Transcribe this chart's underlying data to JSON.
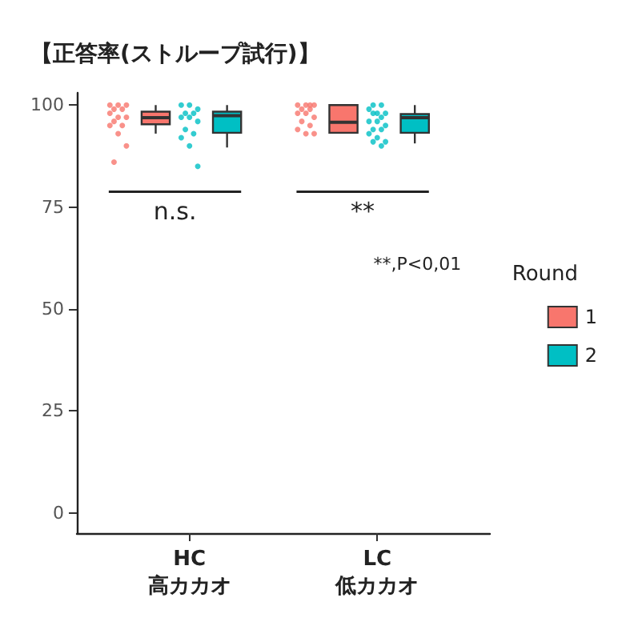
{
  "chart_data": {
    "type": "box",
    "title": "【正答率(ストループ試行)】",
    "categories": [
      "HC\n高カカオ",
      "LC\n低カカオ"
    ],
    "ylim": [
      -5,
      103
    ],
    "yticks": [
      0,
      25,
      50,
      75,
      100
    ],
    "grid": false,
    "legend": "right",
    "legend_title": "Round",
    "series": [
      {
        "name": "1",
        "color": "#f8766d",
        "boxes": [
          {
            "low": 93,
            "q1": 95.3,
            "median": 96.9,
            "q3": 98.4,
            "high": 100
          },
          {
            "low": 93,
            "q1": 93.2,
            "median": 95.8,
            "q3": 100,
            "high": 100
          }
        ]
      },
      {
        "name": "2",
        "color": "#00bfc4",
        "boxes": [
          {
            "low": 89.6,
            "q1": 93.2,
            "median": 97.4,
            "q3": 98.4,
            "high": 100
          },
          {
            "low": 90.6,
            "q1": 93.2,
            "median": 96.9,
            "q3": 97.8,
            "high": 100
          }
        ]
      },
      {
        "type": "scatter",
        "color": "#f8766d",
        "x": [
          "HC\n高カカオ",
          "HC\n高カカオ",
          "HC\n高カカオ",
          "HC\n高カカオ",
          "HC\n高カカオ",
          "HC\n高カカオ",
          "HC\n高カカオ",
          "HC\n高カカオ",
          "HC\n高カカオ",
          "HC\n高カカオ",
          "HC\n高カカオ",
          "HC\n高カカオ",
          "HC\n高カカオ",
          "HC\n高カカオ",
          "LC\n低カカオ",
          "LC\n低カカオ",
          "LC\n低カカオ",
          "LC\n低カカオ",
          "LC\n低カカオ",
          "LC\n低カカオ",
          "LC\n低カカオ",
          "LC\n低カカオ",
          "LC\n低カカオ",
          "LC\n低カカオ",
          "LC\n低カカオ",
          "LC\n低カカオ",
          "LC\n低カカオ",
          "LC\n低カカオ"
        ],
        "values": [
          100,
          100,
          100,
          99,
          99,
          98,
          97,
          97,
          96,
          95,
          95,
          93,
          90,
          86,
          100,
          100,
          100,
          100,
          99,
          99,
          98,
          98,
          97,
          96,
          95,
          94,
          93,
          93
        ]
      },
      {
        "type": "scatter",
        "color": "#00bfc4",
        "x": [
          "HC\n高カカオ",
          "HC\n高カカオ",
          "HC\n高カカオ",
          "HC\n高カカオ",
          "HC\n高カカオ",
          "HC\n高カカオ",
          "HC\n高カカオ",
          "HC\n高カカオ",
          "HC\n高カカオ",
          "HC\n高カカオ",
          "HC\n高カカオ",
          "HC\n高カカオ",
          "HC\n高カカオ",
          "LC\n低カカオ",
          "LC\n低カカオ",
          "LC\n低カカオ",
          "LC\n低カカオ",
          "LC\n低カカオ",
          "LC\n低カカオ",
          "LC\n低カカオ",
          "LC\n低カカオ",
          "LC\n低カカオ",
          "LC\n低カカオ",
          "LC\n低カカオ",
          "LC\n低カカオ",
          "LC\n低カカオ",
          "LC\n低カカオ",
          "LC\n低カカオ",
          "LC\n低カカオ",
          "LC\n低カカオ"
        ],
        "values": [
          100,
          100,
          99,
          98,
          98,
          97,
          97,
          96,
          94,
          93,
          92,
          90,
          85,
          100,
          100,
          99,
          98,
          98,
          98,
          97,
          96,
          96,
          95,
          94,
          94,
          93,
          92,
          91,
          91,
          90
        ]
      }
    ],
    "annotations": [
      "n.s.",
      "**",
      "**,P<0,01"
    ]
  }
}
